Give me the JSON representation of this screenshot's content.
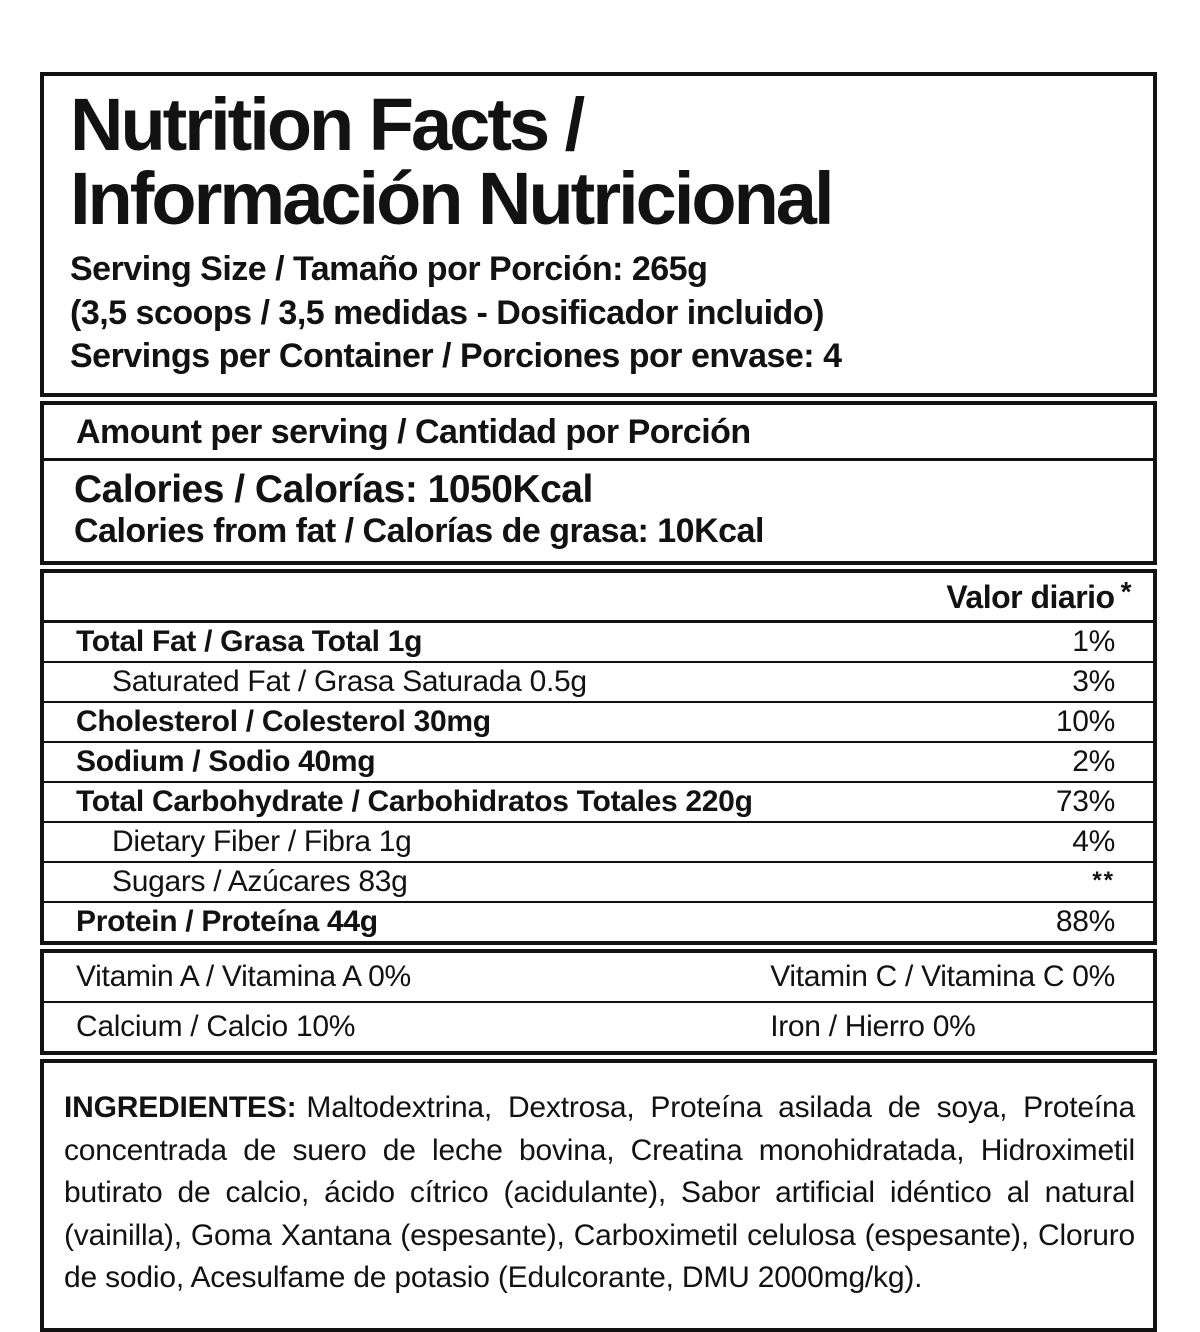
{
  "colors": {
    "ink": "#121212",
    "background": "#ffffff"
  },
  "title": {
    "line1": "Nutrition Facts /",
    "line2": "Información Nutricional"
  },
  "serving": {
    "size": "Serving Size / Tamaño por Porción: 265g",
    "scoops": "(3,5 scoops / 3,5 medidas - Dosificador incluido)",
    "per_container": "Servings per Container / Porciones por envase: 4"
  },
  "amount_per_serving": "Amount per serving / Cantidad por Porción",
  "calories": {
    "line1": "Calories / Calorías: 1050Kcal",
    "line2": "Calories from fat / Calorías de grasa: 10Kcal"
  },
  "daily_value": {
    "header": "Valor diario",
    "asterisk": "*"
  },
  "nutrients": [
    {
      "label": "Total Fat / Grasa Total 1g",
      "value": "1%"
    },
    {
      "label": "Saturated Fat / Grasa Saturada 0.5g",
      "value": "3%"
    },
    {
      "label": "Cholesterol / Colesterol 30mg",
      "value": "10%"
    },
    {
      "label": "Sodium / Sodio 40mg",
      "value": "2%"
    },
    {
      "label": "Total Carbohydrate / Carbohidratos Totales 220g",
      "value": "73%"
    },
    {
      "label": "Dietary Fiber / Fibra 1g",
      "value": "4%"
    },
    {
      "label": "Sugars / Azúcares 83g",
      "value": "**"
    },
    {
      "label": "Protein / Proteína 44g",
      "value": "88%"
    }
  ],
  "vitamins": [
    {
      "left": "Vitamin A / Vitamina A 0%",
      "right": "Vitamin C / Vitamina C 0%"
    },
    {
      "left": "Calcium / Calcio 10%",
      "right": "Iron / Hierro 0%"
    }
  ],
  "ingredients": {
    "label": "INGREDIENTES:",
    "text": "Maltodextrina, Dextrosa, Proteína asilada de soya, Proteína concentrada de suero de leche bovina, Creatina monohidratada, Hidroximetil butirato de calcio, ácido cítrico (acidulante), Sabor artificial idéntico al natural (vainilla), Goma Xantana (espesante), Carboximetil celulosa (espesante), Cloruro de sodio, Acesulfame de potasio (Edulcorante, DMU 2000mg/kg)."
  }
}
